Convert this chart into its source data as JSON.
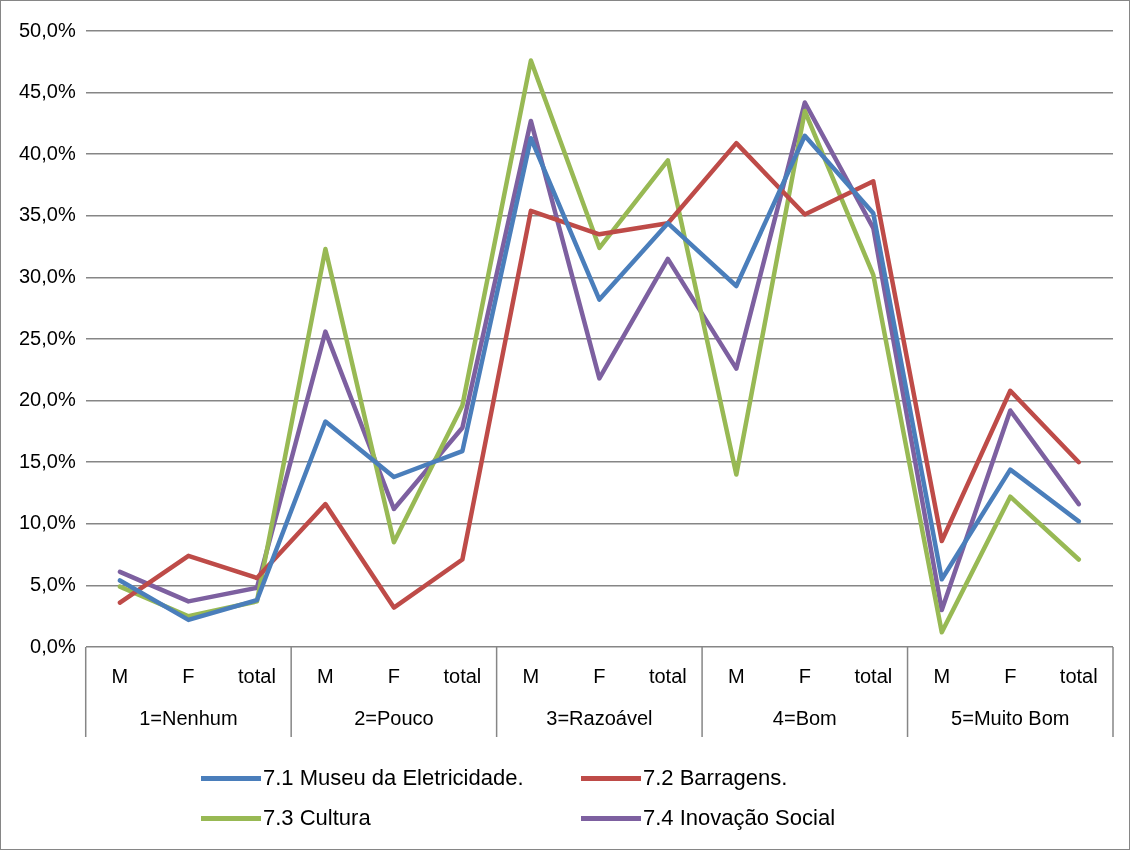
{
  "chart_data": {
    "type": "line",
    "categories": [
      "M",
      "F",
      "total",
      "M",
      "F",
      "total",
      "M",
      "F",
      "total",
      "M",
      "F",
      "total",
      "M",
      "F",
      "total"
    ],
    "annotations": [
      "1=Nenhum",
      "2=Pouco",
      "3=Razoável",
      "4=Bom",
      "5=Muito Bom"
    ],
    "series": [
      {
        "name": "7.1 Museu da Eletricidade.",
        "color": "#4a7ebb",
        "values": [
          5.4,
          2.2,
          3.8,
          18.3,
          13.8,
          15.9,
          41.3,
          28.2,
          34.4,
          29.3,
          41.5,
          35.2,
          5.5,
          14.4,
          10.2
        ]
      },
      {
        "name": "7.2 Barragens.",
        "color": "#be4b48",
        "values": [
          3.6,
          7.4,
          5.6,
          11.6,
          3.2,
          7.1,
          35.4,
          33.5,
          34.4,
          40.9,
          35.1,
          37.8,
          8.6,
          20.8,
          15.0
        ]
      },
      {
        "name": "7.3 Cultura",
        "color": "#98b954",
        "values": [
          4.9,
          2.5,
          3.7,
          32.3,
          8.5,
          19.6,
          47.6,
          32.4,
          39.5,
          14.0,
          43.5,
          30.2,
          1.2,
          12.2,
          7.1
        ]
      },
      {
        "name": "7.4 Inovação Social",
        "color": "#7d60a0",
        "values": [
          6.1,
          3.7,
          4.8,
          25.6,
          11.2,
          17.8,
          42.7,
          21.8,
          31.5,
          22.6,
          44.2,
          34.0,
          3.0,
          19.2,
          11.6
        ]
      }
    ],
    "ylim": [
      0,
      50
    ],
    "yticks": [
      {
        "value": 0,
        "label": "0,0%"
      },
      {
        "value": 5,
        "label": "5,0%"
      },
      {
        "value": 10,
        "label": "10,0%"
      },
      {
        "value": 15,
        "label": "15,0%"
      },
      {
        "value": 20,
        "label": "20,0%"
      },
      {
        "value": 25,
        "label": "25,0%"
      },
      {
        "value": 30,
        "label": "30,0%"
      },
      {
        "value": 35,
        "label": "35,0%"
      },
      {
        "value": 40,
        "label": "40,0%"
      },
      {
        "value": 45,
        "label": "45,0%"
      },
      {
        "value": 50,
        "label": "50,0%"
      }
    ],
    "grid": "y",
    "legend": "bottom",
    "marker": "none",
    "line_style": "solid"
  }
}
